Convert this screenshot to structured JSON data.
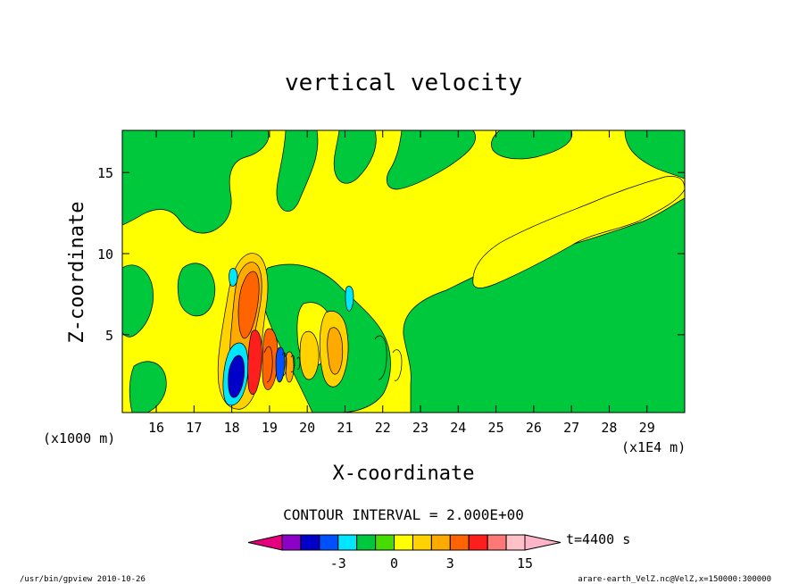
{
  "chart_data": {
    "type": "heatmap",
    "title": "vertical velocity",
    "xlabel": "X-coordinate",
    "ylabel": "Z-coordinate",
    "x_unit_left": "(x1000 m)",
    "x_unit_right": "(x1E4 m)",
    "x_ticks": [
      "16",
      "17",
      "18",
      "19",
      "20",
      "21",
      "22",
      "23",
      "24",
      "25",
      "26",
      "27",
      "28",
      "29"
    ],
    "x_tick_values": [
      16,
      17,
      18,
      19,
      20,
      21,
      22,
      23,
      24,
      25,
      26,
      27,
      28,
      29
    ],
    "xlim": [
      15.1,
      30.0
    ],
    "y_ticks": [
      "5",
      "10",
      "15"
    ],
    "y_tick_values": [
      5,
      10,
      15
    ],
    "ylim": [
      0.2,
      17.6
    ],
    "contour_interval_label": "CONTOUR INTERVAL = 2.000E+00",
    "colorbar": {
      "ticks": [
        "-3",
        "0",
        "3",
        "15"
      ],
      "tick_values": [
        -3,
        0,
        3,
        15
      ],
      "bins": [
        -9,
        -7,
        -5,
        -3,
        -2,
        -1,
        0,
        1,
        2,
        3,
        6,
        9,
        12,
        15
      ],
      "colors": [
        "#e6007e",
        "#8c00c8",
        "#0000c8",
        "#0050ff",
        "#00e6ff",
        "#00c83c",
        "#46dc00",
        "#ffff00",
        "#ffd200",
        "#ffaa00",
        "#ff6400",
        "#ff1e1e",
        "#ff7878",
        "#ffc0c8",
        "#ffb4c8"
      ]
    },
    "time_label": "t=4400 s",
    "field_regions": {
      "background": "#ffff00",
      "positive_core_x": 18.5,
      "negative_core_x": 18.1,
      "positive_core_peak_z": 7.0,
      "wave_train_x": [
        18.0,
        19.6
      ],
      "quiet_region_x_start": 22.7
    }
  },
  "footer": {
    "left": "/usr/bin/gpview   2010-10-26",
    "right": "arare-earth_VelZ.nc@VelZ,x=150000:300000"
  }
}
